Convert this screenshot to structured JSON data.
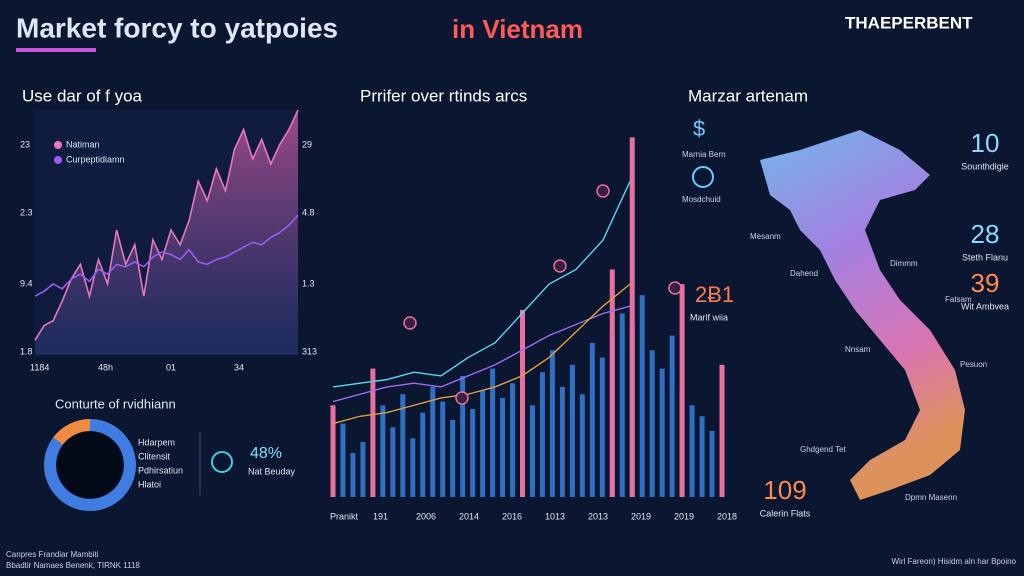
{
  "header": {
    "title": "Market  forcy to yatpoies",
    "title_accent": "in Vietnam",
    "brand": "THAEPERBENT"
  },
  "panel_trend": {
    "title": "Use dar of f yoa",
    "legend": [
      "Natiman",
      "Curpeptidiamn"
    ],
    "left_labels": [
      "23",
      "2.3",
      "9.4",
      "1.8"
    ],
    "right_labels": [
      "29",
      "4.8",
      "1.3",
      "313"
    ],
    "x_labels": [
      "1184",
      "48h",
      "01",
      "34"
    ],
    "ylim": [
      0,
      100
    ],
    "series": [
      {
        "name": "Natiman",
        "color": "#e879b9",
        "values": [
          6,
          12,
          14,
          22,
          31,
          37,
          24,
          39,
          29,
          51,
          37,
          45,
          24,
          47,
          39,
          51,
          45,
          55,
          71,
          63,
          76,
          67,
          84,
          92,
          80,
          88,
          78,
          86,
          92,
          100
        ]
      },
      {
        "name": "Curpeptidiamn",
        "color": "#9b5cf0",
        "values": [
          24,
          26,
          29,
          27,
          31,
          33,
          30,
          35,
          33,
          37,
          36,
          38,
          36,
          40,
          42,
          41,
          39,
          43,
          38,
          37,
          39,
          40,
          42,
          44,
          46,
          45,
          48,
          50,
          53,
          57
        ]
      }
    ]
  },
  "panel_donut": {
    "title": "Conturte of rvidhiann",
    "legend": [
      "Hdarpem",
      "Clitensit",
      "Pdhirsatiun",
      "Hlatoi"
    ],
    "stat": "48%",
    "stat_label": "Nat Beuday"
  },
  "panel_bars": {
    "title": "Prrifer over rtinds arcs",
    "x_labels": [
      "Pranikt",
      "191",
      "2006",
      "2014",
      "2016",
      "1013",
      "2013",
      "2019",
      "2019",
      "2018"
    ],
    "ylim": [
      0,
      100
    ],
    "bars": [
      {
        "color": "#2f6fc4",
        "values": [
          18,
          20,
          12,
          15,
          22,
          25,
          19,
          28,
          16,
          23,
          30,
          26,
          21,
          33,
          24,
          29,
          35,
          27,
          31,
          38,
          25,
          34,
          40,
          30,
          36,
          28,
          42,
          38,
          45,
          50,
          47,
          55,
          40,
          35,
          44,
          30,
          25,
          22,
          18,
          20
        ]
      },
      {
        "color": "#e8709f",
        "values": [
          25,
          null,
          null,
          null,
          35,
          null,
          null,
          null,
          null,
          null,
          null,
          null,
          null,
          null,
          null,
          null,
          null,
          null,
          null,
          51,
          null,
          null,
          null,
          null,
          null,
          null,
          null,
          null,
          62,
          null,
          98,
          null,
          null,
          null,
          null,
          58,
          null,
          null,
          null,
          36
        ]
      }
    ],
    "lines": [
      {
        "color": "#5fd6f0",
        "values": [
          30,
          31,
          32,
          34,
          33,
          38,
          42,
          50,
          58,
          62,
          70,
          86
        ]
      },
      {
        "color": "#a16cf0",
        "values": [
          26,
          28,
          30,
          31,
          30,
          33,
          36,
          40,
          44,
          47,
          50,
          52
        ]
      },
      {
        "color": "#e0a040",
        "values": [
          20,
          22,
          23,
          25,
          27,
          28,
          30,
          33,
          38,
          45,
          52,
          58
        ]
      }
    ]
  },
  "panel_map": {
    "title": "Marzar artenam",
    "stats": [
      {
        "value": "10",
        "label": "Sounthdigie"
      },
      {
        "value": "28",
        "label": "Steth Flanu"
      },
      {
        "value": "39",
        "label": "Wit Ambvea"
      },
      {
        "value": "109",
        "label": "Calerin Flats"
      }
    ],
    "places": [
      "Marnia Bern",
      "Mosdchuid",
      "Mesanm",
      "Dahend",
      "Dimmm",
      "Fatsam",
      "Nnsam",
      "Pesuon",
      "Ghdgend Tet",
      "Dpmn Masenn"
    ],
    "left_stat": "2Ƀ1",
    "left_stat_label": "Marif wiia"
  },
  "footer": {
    "left": [
      "Canpres Frandiar Mambiti",
      "Bbadtir Namaes Benenk, TIRNK 1118"
    ],
    "right": "Wirl Fareon) Hisidm aln har Bpoino"
  }
}
